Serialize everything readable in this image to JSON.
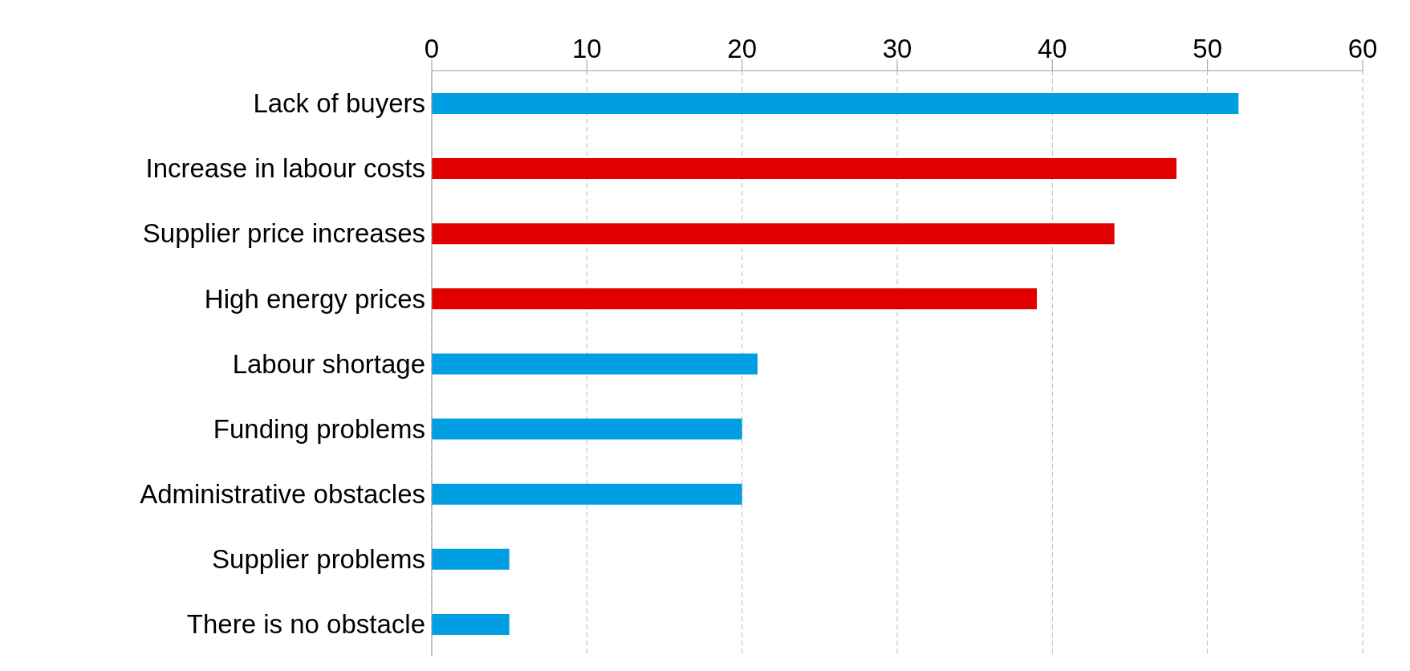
{
  "chart_data": {
    "type": "bar",
    "orientation": "horizontal",
    "categories": [
      "Lack of buyers",
      "Increase in labour costs",
      "Supplier price increases",
      "High energy prices",
      "Labour shortage",
      "Funding problems",
      "Administrative obstacles",
      "Supplier problems",
      "There is no obstacle"
    ],
    "values": [
      52,
      48,
      44,
      39,
      21,
      20,
      20,
      5,
      5
    ],
    "colors": [
      "#009fe3",
      "#e00000",
      "#e00000",
      "#e00000",
      "#009fe3",
      "#009fe3",
      "#009fe3",
      "#009fe3",
      "#009fe3"
    ],
    "xlim": [
      0,
      60
    ],
    "xticks": [
      0,
      10,
      20,
      30,
      40,
      50,
      60
    ],
    "grid": "x",
    "legend": false
  }
}
